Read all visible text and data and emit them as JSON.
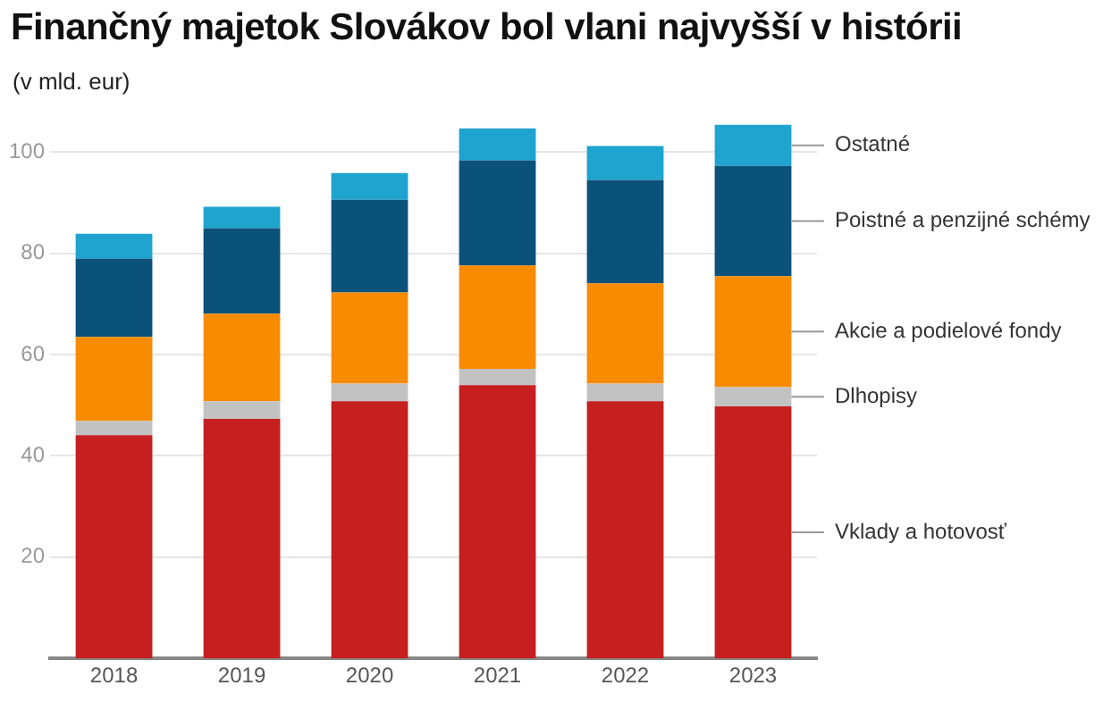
{
  "chart_data": {
    "type": "bar",
    "title": "Finančný majetok Slovákov bol vlani najvyšší v histórii",
    "subtitle": "(v mld. eur)",
    "categories": [
      "2018",
      "2019",
      "2020",
      "2021",
      "2022",
      "2023"
    ],
    "stacked": true,
    "ylim": [
      0,
      106
    ],
    "yticks": [
      20,
      40,
      60,
      80,
      100
    ],
    "grid": "y",
    "series": [
      {
        "name": "Vklady a hotovosť",
        "color": "#c51f1f",
        "values": [
          44.1,
          47.3,
          50.8,
          54.0,
          50.8,
          49.8
        ]
      },
      {
        "name": "Dlhopisy",
        "color": "#c2c2c2",
        "values": [
          2.8,
          3.5,
          3.5,
          3.2,
          3.5,
          3.8
        ]
      },
      {
        "name": "Akcie a podielové fondy",
        "color": "#f98b00",
        "values": [
          16.6,
          17.3,
          18.0,
          20.4,
          19.8,
          21.9
        ]
      },
      {
        "name": "Poistné a penzijné schémy",
        "color": "#0b527a",
        "values": [
          15.5,
          16.9,
          18.3,
          20.8,
          20.4,
          21.8
        ]
      },
      {
        "name": "Ostatné",
        "color": "#1fa3cf",
        "values": [
          4.9,
          4.2,
          5.3,
          6.3,
          6.7,
          8.1
        ]
      }
    ]
  }
}
